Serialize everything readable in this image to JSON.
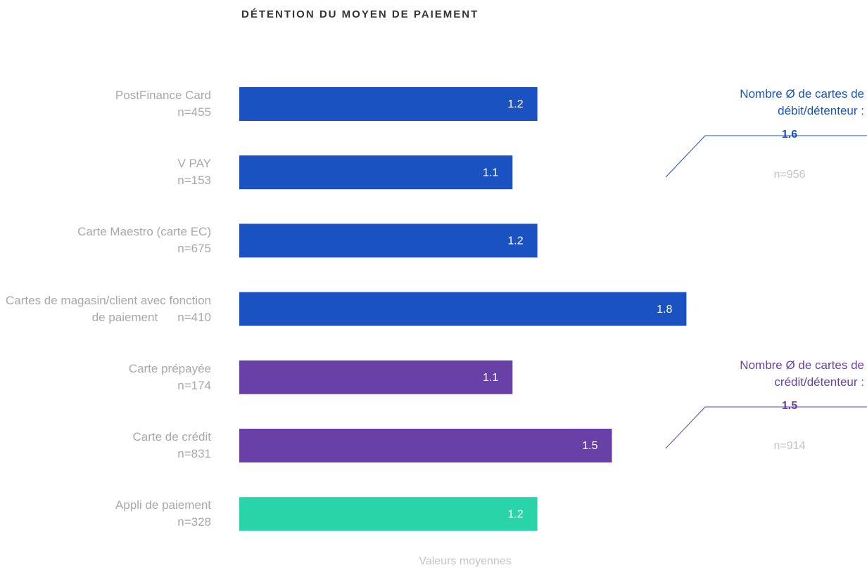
{
  "chart_data": {
    "type": "hbar",
    "title": "DÉTENTION DU MOYEN DE PAIEMENT",
    "categories": [
      "PostFinance Card",
      "V PAY",
      "Carte Maestro (carte EC)",
      "Cartes de magasin/client avec fonction de paiement",
      "Carte prépayée",
      "Carte de crédit",
      "Appli de paiement"
    ],
    "sample_sizes": [
      "n=455",
      "n=153",
      "n=675",
      "n=410",
      "n=174",
      "n=831",
      "n=328"
    ],
    "values": [
      1.2,
      1.1,
      1.2,
      1.8,
      1.1,
      1.5,
      1.2
    ],
    "colors": [
      "#1a52c2",
      "#1a52c2",
      "#1a52c2",
      "#1a52c2",
      "#6840a8",
      "#6840a8",
      "#2ad4a9"
    ],
    "xlim": [
      0,
      2
    ],
    "x_label": "Valeurs moyennes",
    "annotations": [
      {
        "text": "Nombre Ø de cartes de débit/détenteur :",
        "value": 1.6,
        "n": "n=956",
        "color": "#1a52c2"
      },
      {
        "text": "Nombre Ø de cartes de crédit/détenteur :",
        "value": 1.5,
        "n": "n=914",
        "color": "#6840a8"
      }
    ]
  }
}
